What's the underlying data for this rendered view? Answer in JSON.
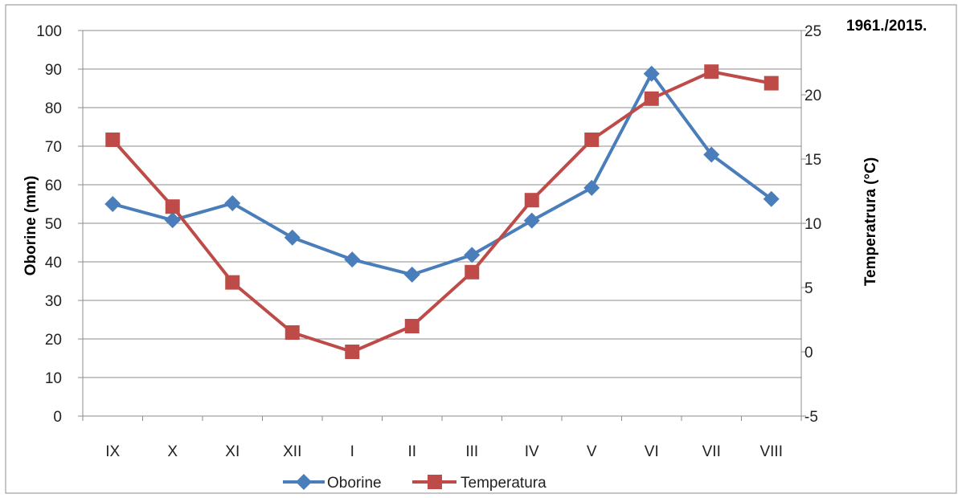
{
  "chart_data": {
    "type": "line",
    "title": "",
    "period_label": "1961./2015.",
    "categories": [
      "IX",
      "X",
      "XI",
      "XII",
      "I",
      "II",
      "III",
      "IV",
      "V",
      "VI",
      "VII",
      "VIII"
    ],
    "series": [
      {
        "name": "Oborine",
        "axis": "left",
        "color": "#4A7EBB",
        "marker": "diamond",
        "values": [
          55.0,
          50.8,
          55.2,
          46.3,
          40.6,
          36.7,
          41.8,
          50.7,
          59.2,
          88.8,
          67.8,
          56.3
        ]
      },
      {
        "name": "Temperatura",
        "axis": "right",
        "color": "#BE4B48",
        "marker": "square",
        "values": [
          16.5,
          11.3,
          5.4,
          1.5,
          0.0,
          2.0,
          6.2,
          11.8,
          16.5,
          19.7,
          21.8,
          20.9
        ]
      }
    ],
    "y_left": {
      "label": "Oborine (mm)",
      "lim": [
        0,
        100
      ],
      "ticks": [
        0,
        10,
        20,
        30,
        40,
        50,
        60,
        70,
        80,
        90,
        100
      ]
    },
    "y_right": {
      "label": "Temperatrura (°C)",
      "lim": [
        -5,
        25
      ],
      "ticks": [
        -5,
        0,
        5,
        10,
        15,
        20,
        25
      ]
    },
    "grid": "horizontal",
    "legend": "bottom"
  }
}
